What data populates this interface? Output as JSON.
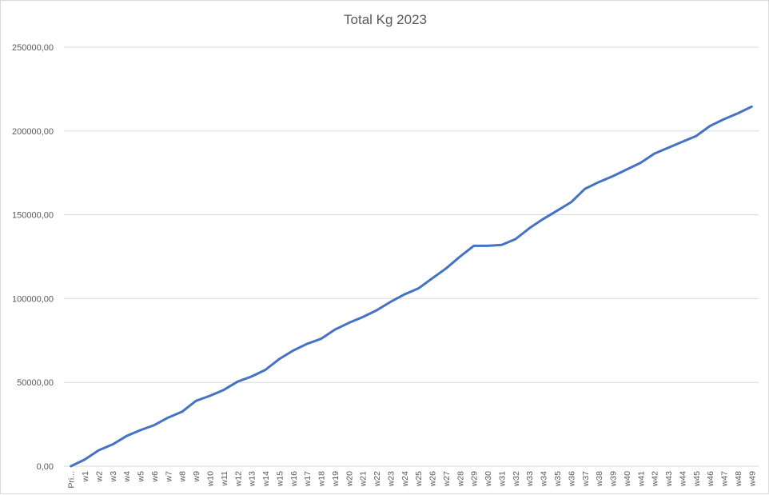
{
  "chart_data": {
    "type": "line",
    "title": "Total Kg 2023",
    "xlabel": "",
    "ylabel": "",
    "ylim": [
      0,
      250000
    ],
    "y_ticks": [
      "0,00",
      "50000,00",
      "100000,00",
      "150000,00",
      "200000,00",
      "250000,00"
    ],
    "grid": true,
    "legend": "none",
    "categories": [
      "Pri...",
      "w1",
      "w2",
      "w3",
      "w4",
      "w5",
      "w6",
      "w7",
      "w8",
      "w9",
      "w10",
      "w11",
      "w12",
      "w13",
      "w14",
      "w15",
      "w16",
      "w17",
      "w18",
      "w19",
      "w20",
      "w21",
      "w22",
      "w23",
      "w24",
      "w25",
      "w26",
      "w27",
      "w28",
      "w29",
      "w30",
      "w31",
      "w32",
      "w33",
      "w34",
      "w35",
      "w36",
      "w37",
      "w38",
      "w39",
      "w40",
      "w41",
      "w42",
      "w43",
      "w44",
      "w45",
      "w46",
      "w47",
      "w48",
      "w49"
    ],
    "series": [
      {
        "color": "#4472c4",
        "values": [
          0,
          4000,
          9500,
          13000,
          18000,
          21500,
          24500,
          29000,
          32500,
          39000,
          42000,
          45500,
          50500,
          53500,
          57500,
          64000,
          69000,
          73000,
          76000,
          81500,
          85500,
          89000,
          93000,
          98000,
          102500,
          106000,
          112000,
          118000,
          125000,
          131500,
          131500,
          132000,
          135500,
          142000,
          147500,
          152500,
          157500,
          165500,
          169500,
          173000,
          177000,
          181000,
          186500,
          190000,
          193500,
          197000,
          203000,
          207000,
          210500,
          214500
        ]
      }
    ]
  }
}
